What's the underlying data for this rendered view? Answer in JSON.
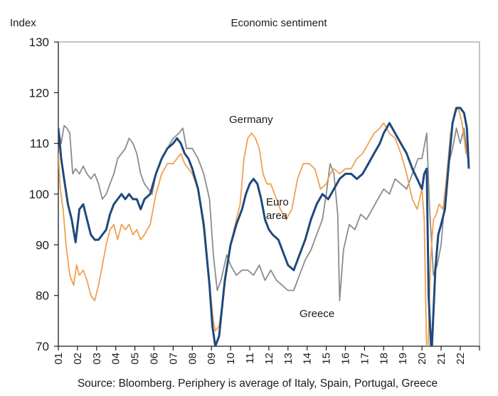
{
  "chart_data": {
    "type": "line",
    "title": "Economic sentiment",
    "ylabel": "Index",
    "xlabel": "",
    "ylim": [
      70,
      130
    ],
    "xlim": [
      2001,
      2022.85
    ],
    "yticks": [
      70,
      80,
      90,
      100,
      110,
      120,
      130
    ],
    "xtick_labels": [
      "01",
      "02",
      "03",
      "04",
      "05",
      "06",
      "07",
      "08",
      "09",
      "10",
      "11",
      "12",
      "13",
      "14",
      "15",
      "16",
      "17",
      "18",
      "19",
      "20",
      "21",
      "22"
    ],
    "xtick_values": [
      2001,
      2002,
      2003,
      2004,
      2005,
      2006,
      2007,
      2008,
      2009,
      2010,
      2011,
      2012,
      2013,
      2014,
      2015,
      2016,
      2017,
      2018,
      2019,
      2020,
      2021,
      2022
    ],
    "grid": false,
    "source": "Source: Bloomberg.  Periphery is average of Italy, Spain, Portugal, Greece",
    "annotations": [
      {
        "text": "Germany",
        "series": "Germany"
      },
      {
        "text": "Euro",
        "series": "Euro area"
      },
      {
        "text": "area",
        "series": "Euro area"
      },
      {
        "text": "Greece",
        "series": "Greece"
      }
    ],
    "series": [
      {
        "name": "Greece",
        "color": "#8c8c8c",
        "x": [
          2001.0,
          2001.15,
          2001.3,
          2001.45,
          2001.6,
          2001.75,
          2001.9,
          2002.1,
          2002.3,
          2002.5,
          2002.7,
          2002.9,
          2003.1,
          2003.3,
          2003.5,
          2003.7,
          2003.9,
          2004.1,
          2004.3,
          2004.5,
          2004.7,
          2004.9,
          2005.1,
          2005.3,
          2005.5,
          2005.7,
          2005.9,
          2006.1,
          2006.4,
          2006.7,
          2007.0,
          2007.3,
          2007.5,
          2007.7,
          2008.0,
          2008.3,
          2008.6,
          2008.9,
          2009.1,
          2009.3,
          2009.5,
          2009.8,
          2010.0,
          2010.3,
          2010.6,
          2010.9,
          2011.2,
          2011.5,
          2011.8,
          2012.1,
          2012.4,
          2012.7,
          2013.0,
          2013.3,
          2013.6,
          2013.9,
          2014.2,
          2014.5,
          2014.8,
          2015.0,
          2015.2,
          2015.4,
          2015.6,
          2015.7,
          2015.9,
          2016.2,
          2016.5,
          2016.8,
          2017.1,
          2017.4,
          2017.7,
          2018.0,
          2018.3,
          2018.6,
          2018.9,
          2019.2,
          2019.5,
          2019.8,
          2020.0,
          2020.15,
          2020.25,
          2020.4,
          2020.6,
          2020.8,
          2021.0,
          2021.2,
          2021.4,
          2021.6,
          2021.8,
          2022.0,
          2022.2,
          2022.35,
          2022.45
        ],
        "y": [
          113,
          110,
          113.5,
          113,
          112,
          104,
          105,
          104,
          105.5,
          104,
          103,
          104,
          102,
          99,
          100,
          102,
          104,
          107,
          108,
          109,
          111,
          110,
          108,
          104,
          102,
          101,
          100,
          104,
          107,
          109,
          111,
          112,
          113,
          109,
          109,
          107,
          104,
          99,
          88,
          81,
          83,
          88,
          86,
          84,
          85,
          85,
          84,
          86,
          83,
          85,
          83,
          82,
          81,
          81,
          84,
          87,
          89,
          92,
          95,
          100,
          106,
          104,
          96,
          79,
          89,
          94,
          93,
          96,
          95,
          97,
          99,
          101,
          100,
          103,
          102,
          101,
          104,
          107,
          107,
          110,
          112,
          97,
          84,
          86,
          90,
          99,
          106,
          109,
          113,
          110,
          113,
          108,
          106
        ]
      },
      {
        "name": "Germany",
        "color": "#f0a050",
        "x": [
          2001.0,
          2001.1,
          2001.25,
          2001.4,
          2001.6,
          2001.8,
          2001.95,
          2002.1,
          2002.3,
          2002.5,
          2002.7,
          2002.9,
          2003.1,
          2003.3,
          2003.5,
          2003.7,
          2003.9,
          2004.1,
          2004.3,
          2004.5,
          2004.7,
          2004.9,
          2005.1,
          2005.3,
          2005.5,
          2005.8,
          2006.1,
          2006.4,
          2006.7,
          2007.0,
          2007.2,
          2007.4,
          2007.6,
          2007.8,
          2008.0,
          2008.3,
          2008.6,
          2008.9,
          2009.1,
          2009.2,
          2009.4,
          2009.7,
          2010.0,
          2010.3,
          2010.5,
          2010.7,
          2010.9,
          2011.1,
          2011.3,
          2011.5,
          2011.7,
          2011.9,
          2012.1,
          2012.3,
          2012.6,
          2012.9,
          2013.2,
          2013.5,
          2013.8,
          2014.1,
          2014.4,
          2014.7,
          2015.0,
          2015.2,
          2015.4,
          2015.7,
          2016.0,
          2016.3,
          2016.6,
          2016.9,
          2017.2,
          2017.5,
          2017.8,
          2018.0,
          2018.3,
          2018.6,
          2018.9,
          2019.2,
          2019.5,
          2019.75,
          2020.0,
          2020.12,
          2020.25,
          2020.32,
          2020.45,
          2020.6,
          2020.75,
          2020.9,
          2021.1,
          2021.3,
          2021.5,
          2021.7,
          2021.9,
          2022.1,
          2022.3,
          2022.45
        ],
        "y": [
          108,
          101,
          97,
          90,
          84,
          82,
          86,
          84,
          85,
          83,
          80,
          79,
          82,
          86,
          90,
          93,
          94,
          91,
          94,
          93,
          94,
          92,
          93,
          91,
          92,
          94,
          100,
          104,
          106,
          106,
          107,
          108,
          106,
          105,
          104,
          101,
          93,
          82,
          75,
          73,
          74,
          82,
          90,
          95,
          98,
          107,
          111,
          112,
          111,
          109,
          104,
          102,
          102,
          100,
          97,
          95,
          97,
          103,
          106,
          106,
          105,
          101,
          102,
          104,
          105,
          104,
          105,
          105,
          107,
          108,
          110,
          112,
          113,
          114,
          112,
          111,
          108,
          104,
          99,
          97,
          101,
          95,
          68,
          70,
          87,
          95,
          96,
          98,
          97,
          104,
          112,
          116,
          117,
          114,
          108,
          108
        ]
      },
      {
        "name": "Euro area",
        "color": "#1f497d",
        "x": [
          2001.0,
          2001.15,
          2001.3,
          2001.5,
          2001.7,
          2001.9,
          2002.1,
          2002.3,
          2002.5,
          2002.7,
          2002.9,
          2003.1,
          2003.3,
          2003.5,
          2003.7,
          2003.9,
          2004.1,
          2004.3,
          2004.5,
          2004.7,
          2004.9,
          2005.1,
          2005.3,
          2005.5,
          2005.8,
          2006.1,
          2006.4,
          2006.7,
          2007.0,
          2007.2,
          2007.4,
          2007.6,
          2007.8,
          2008.0,
          2008.3,
          2008.6,
          2008.9,
          2009.05,
          2009.2,
          2009.4,
          2009.7,
          2010.0,
          2010.3,
          2010.6,
          2010.8,
          2011.0,
          2011.2,
          2011.4,
          2011.6,
          2011.8,
          2012.0,
          2012.2,
          2012.5,
          2012.8,
          2013.0,
          2013.3,
          2013.6,
          2013.9,
          2014.2,
          2014.5,
          2014.8,
          2015.1,
          2015.4,
          2015.7,
          2016.0,
          2016.3,
          2016.6,
          2016.9,
          2017.2,
          2017.5,
          2017.8,
          2018.0,
          2018.3,
          2018.6,
          2018.9,
          2019.2,
          2019.5,
          2019.75,
          2020.0,
          2020.12,
          2020.25,
          2020.35,
          2020.5,
          2020.7,
          2020.85,
          2021.0,
          2021.2,
          2021.4,
          2021.6,
          2021.8,
          2022.0,
          2022.2,
          2022.35,
          2022.45
        ],
        "y": [
          113,
          107,
          103,
          98,
          95,
          90.5,
          97,
          98,
          95,
          92,
          91,
          91,
          92,
          93,
          96,
          98,
          99,
          100,
          99,
          100,
          99,
          99,
          97,
          99,
          100,
          104,
          107,
          109,
          110,
          111,
          110,
          108,
          107,
          105,
          101,
          94,
          82,
          74,
          70,
          72,
          83,
          90,
          94,
          97,
          100,
          102,
          103,
          102,
          99,
          95,
          93,
          92,
          91,
          88,
          86,
          85,
          88,
          91,
          95,
          98,
          100,
          99,
          101,
          103,
          104,
          104,
          103,
          104,
          106,
          108,
          110,
          112,
          114,
          112,
          110,
          108,
          105,
          103,
          101,
          104,
          105,
          80,
          68,
          85,
          92,
          94,
          97,
          106,
          114,
          117,
          117,
          116,
          113,
          105
        ]
      }
    ]
  }
}
